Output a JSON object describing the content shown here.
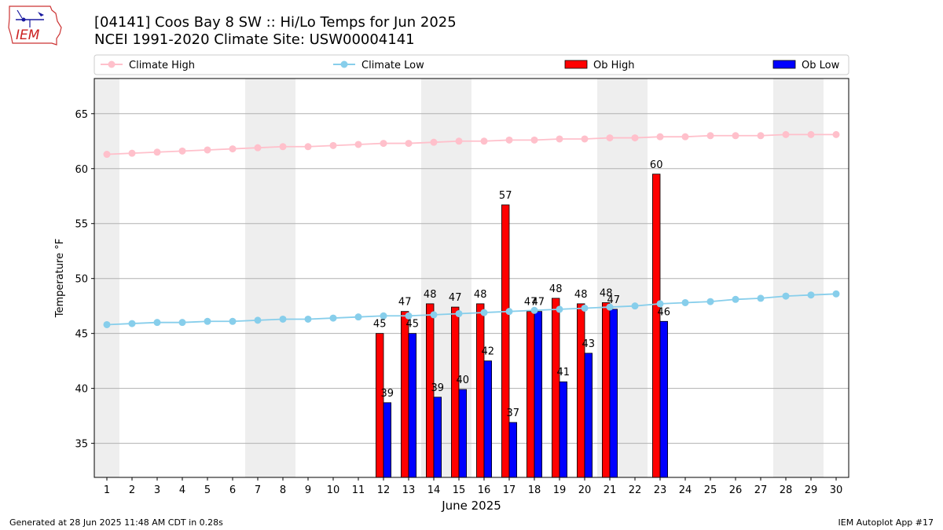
{
  "header": {
    "title_line1": "[04141] Coos Bay 8 SW :: Hi/Lo Temps for Jun 2025",
    "title_line2": "NCEI 1991-2020 Climate Site: USW00004141"
  },
  "logo": {
    "text": "IEM"
  },
  "footer": {
    "generated": "Generated at 28 Jun 2025 11:48 AM CDT in 0.28s",
    "app": "IEM Autoplot App #17"
  },
  "colors": {
    "climate_high": "#ffc0cb",
    "climate_low": "#87ceeb",
    "ob_high": "#ff0000",
    "ob_low": "#0000ff",
    "weekend_shade": "#eeeeee",
    "grid": "#b0b0b0"
  },
  "chart_data": {
    "type": "bar",
    "xlabel": "June 2025",
    "ylabel": "Temperature °F",
    "ylim": [
      31.9,
      68.2
    ],
    "yticks": [
      35,
      40,
      45,
      50,
      55,
      60,
      65
    ],
    "xlim": [
      0.5,
      30.5
    ],
    "x": [
      1,
      2,
      3,
      4,
      5,
      6,
      7,
      8,
      9,
      10,
      11,
      12,
      13,
      14,
      15,
      16,
      17,
      18,
      19,
      20,
      21,
      22,
      23,
      24,
      25,
      26,
      27,
      28,
      29,
      30
    ],
    "grid": "horizontal",
    "legend_position": "top",
    "weekend_spans": [
      [
        0.5,
        1.5
      ],
      [
        6.5,
        8.5
      ],
      [
        13.5,
        15.5
      ],
      [
        20.5,
        22.5
      ],
      [
        27.5,
        29.5
      ]
    ],
    "series": [
      {
        "name": "Climate High",
        "kind": "line",
        "values": [
          61.3,
          61.4,
          61.5,
          61.6,
          61.7,
          61.8,
          61.9,
          62.0,
          62.0,
          62.1,
          62.2,
          62.3,
          62.3,
          62.4,
          62.5,
          62.5,
          62.6,
          62.6,
          62.7,
          62.7,
          62.8,
          62.8,
          62.9,
          62.9,
          63.0,
          63.0,
          63.0,
          63.1,
          63.1,
          63.1
        ]
      },
      {
        "name": "Climate Low",
        "kind": "line",
        "values": [
          45.8,
          45.9,
          46.0,
          46.0,
          46.1,
          46.1,
          46.2,
          46.3,
          46.3,
          46.4,
          46.5,
          46.6,
          46.6,
          46.7,
          46.8,
          46.9,
          47.0,
          47.1,
          47.2,
          47.3,
          47.4,
          47.5,
          47.7,
          47.8,
          47.9,
          48.1,
          48.2,
          48.4,
          48.5,
          48.6
        ]
      },
      {
        "name": "Ob High",
        "kind": "bar",
        "points": [
          {
            "x": 12,
            "y": 45,
            "label": "45"
          },
          {
            "x": 13,
            "y": 47,
            "label": "47"
          },
          {
            "x": 14,
            "y": 47.7,
            "label": "48"
          },
          {
            "x": 15,
            "y": 47.4,
            "label": "47"
          },
          {
            "x": 16,
            "y": 47.7,
            "label": "48"
          },
          {
            "x": 17,
            "y": 56.7,
            "label": "57"
          },
          {
            "x": 18,
            "y": 47,
            "label": "47"
          },
          {
            "x": 19,
            "y": 48.2,
            "label": "48"
          },
          {
            "x": 20,
            "y": 47.7,
            "label": "48"
          },
          {
            "x": 21,
            "y": 47.8,
            "label": "48"
          },
          {
            "x": 23,
            "y": 59.5,
            "label": "60"
          }
        ]
      },
      {
        "name": "Ob Low",
        "kind": "bar",
        "points": [
          {
            "x": 12,
            "y": 38.7,
            "label": "39"
          },
          {
            "x": 13,
            "y": 45,
            "label": "45"
          },
          {
            "x": 14,
            "y": 39.2,
            "label": "39"
          },
          {
            "x": 15,
            "y": 39.9,
            "label": "40"
          },
          {
            "x": 16,
            "y": 42.5,
            "label": "42"
          },
          {
            "x": 17,
            "y": 36.9,
            "label": "37"
          },
          {
            "x": 18,
            "y": 47,
            "label": "47"
          },
          {
            "x": 19,
            "y": 40.6,
            "label": "41"
          },
          {
            "x": 20,
            "y": 43.2,
            "label": "43"
          },
          {
            "x": 21,
            "y": 47.2,
            "label": "47"
          },
          {
            "x": 23,
            "y": 46.1,
            "label": "46"
          }
        ]
      }
    ]
  }
}
